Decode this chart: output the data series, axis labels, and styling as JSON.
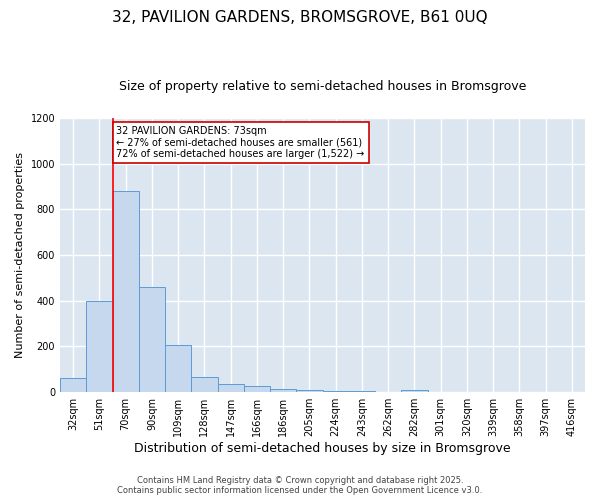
{
  "title": "32, PAVILION GARDENS, BROMSGROVE, B61 0UQ",
  "subtitle": "Size of property relative to semi-detached houses in Bromsgrove",
  "xlabel": "Distribution of semi-detached houses by size in Bromsgrove",
  "ylabel": "Number of semi-detached properties",
  "categories": [
    "32sqm",
    "51sqm",
    "70sqm",
    "90sqm",
    "109sqm",
    "128sqm",
    "147sqm",
    "166sqm",
    "186sqm",
    "205sqm",
    "224sqm",
    "243sqm",
    "262sqm",
    "282sqm",
    "301sqm",
    "320sqm",
    "339sqm",
    "358sqm",
    "397sqm",
    "416sqm"
  ],
  "values": [
    60,
    400,
    880,
    460,
    208,
    65,
    35,
    25,
    15,
    8,
    7,
    5,
    3,
    8,
    2,
    1,
    1,
    1,
    1,
    1
  ],
  "bar_color": "#c5d8ed",
  "bar_edge_color": "#5b9bd5",
  "background_color": "#dce6f1",
  "grid_color": "#ffffff",
  "red_line_index": 2,
  "annotation_text": "32 PAVILION GARDENS: 73sqm\n← 27% of semi-detached houses are smaller (561)\n72% of semi-detached houses are larger (1,522) →",
  "annotation_box_color": "#ffffff",
  "annotation_box_edge_color": "#cc0000",
  "footer_text": "Contains HM Land Registry data © Crown copyright and database right 2025.\nContains public sector information licensed under the Open Government Licence v3.0.",
  "ylim": [
    0,
    1200
  ],
  "title_fontsize": 11,
  "subtitle_fontsize": 9,
  "ylabel_fontsize": 8,
  "xlabel_fontsize": 9,
  "tick_fontsize": 7,
  "annot_fontsize": 7,
  "footer_fontsize": 6
}
